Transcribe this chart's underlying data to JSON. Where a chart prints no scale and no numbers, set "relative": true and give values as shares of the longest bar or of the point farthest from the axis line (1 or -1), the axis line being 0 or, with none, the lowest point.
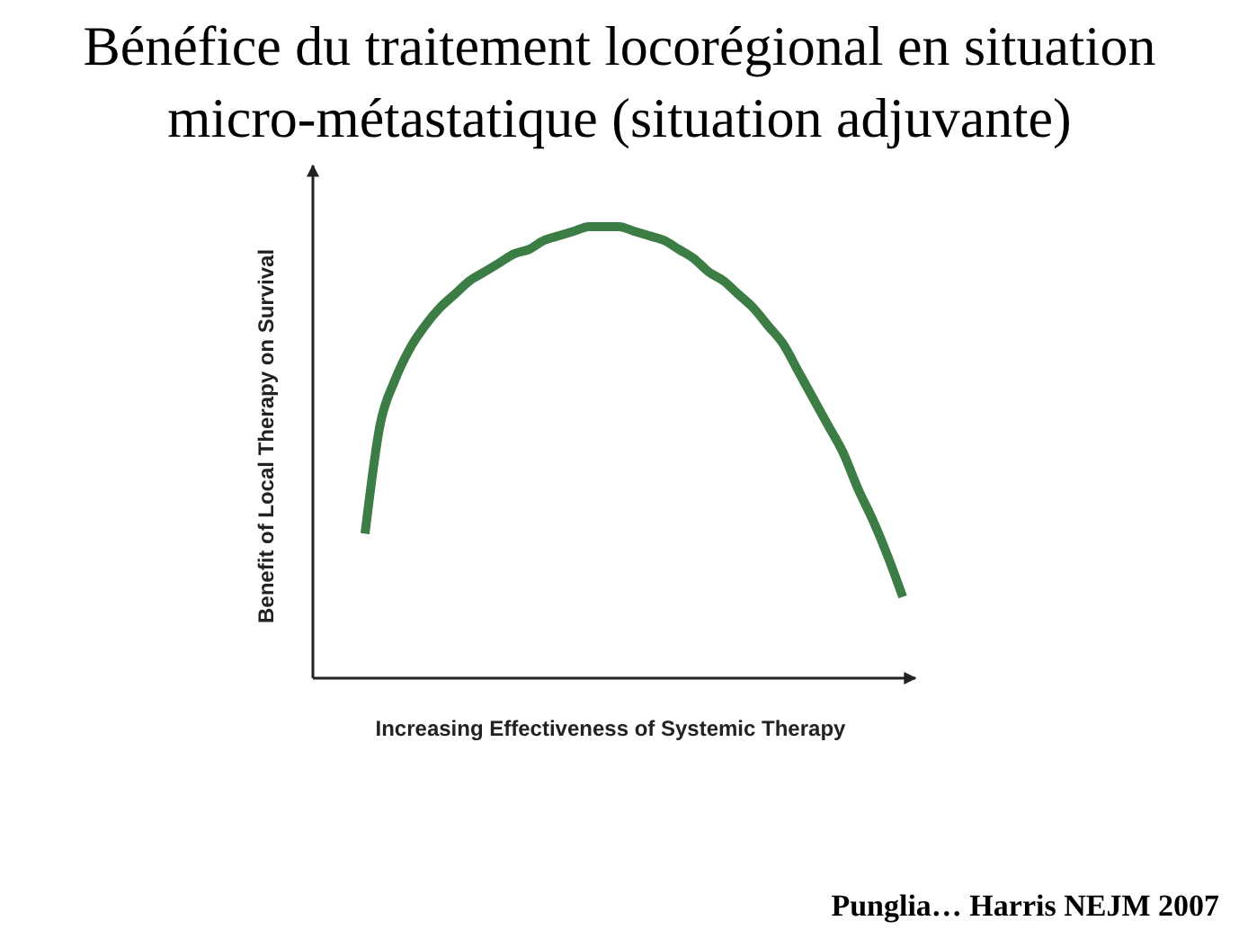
{
  "chart_data": {
    "type": "line",
    "title": "Bénéfice du traitement locorégional en situation micro-métastatique (situation adjuvante)",
    "xlabel": "Increasing Effectiveness of Systemic Therapy",
    "ylabel": "Benefit of Local Therapy on Survival",
    "annotations": [
      "Punglia… Harris NEJM 2007"
    ],
    "relative": true,
    "categories": [
      null,
      null,
      null,
      null,
      null,
      null,
      null,
      null,
      null,
      null,
      null,
      null,
      null,
      null,
      null,
      null,
      null,
      null,
      null,
      null,
      null,
      null,
      null,
      null,
      null,
      null,
      null,
      null,
      null,
      null,
      null,
      null,
      null,
      null,
      null,
      null,
      null
    ],
    "series": [
      {
        "color": "#3b7d45",
        "values": [
          0.32,
          0.56,
          0.66,
          0.73,
          0.78,
          0.82,
          0.85,
          0.88,
          0.9,
          0.92,
          0.94,
          0.95,
          0.97,
          0.98,
          0.99,
          1,
          1,
          1,
          0.99,
          0.98,
          0.97,
          0.95,
          0.93,
          0.9,
          0.88,
          0.85,
          0.82,
          0.78,
          0.74,
          0.68,
          0.62,
          0.56,
          0.5,
          0.42,
          0.35,
          0.27,
          0.18
        ]
      }
    ]
  }
}
